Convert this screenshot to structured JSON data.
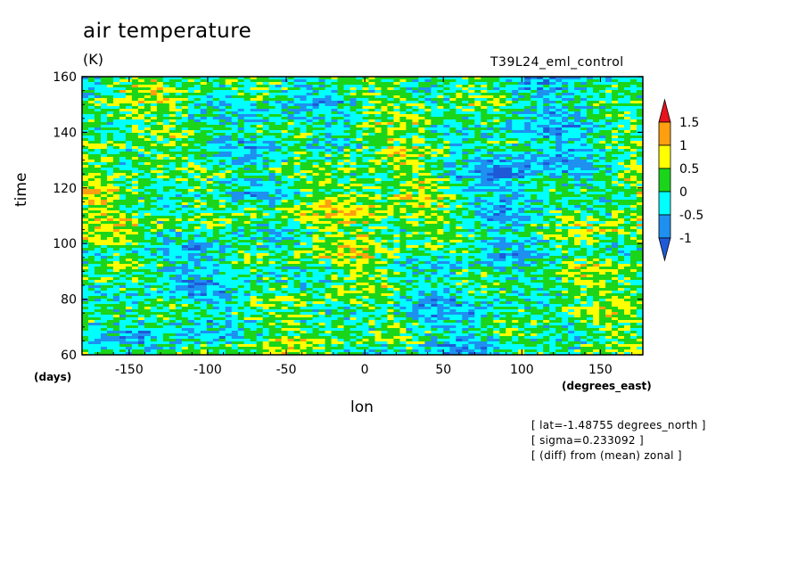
{
  "chart_data": {
    "type": "heatmap",
    "title": "air temperature",
    "units": "(K)",
    "run_label": "T39L24_eml_control",
    "xlabel": "lon",
    "ylabel": "time",
    "x_unit": "(degrees_east)",
    "y_unit": "(days)",
    "xlim": [
      -180,
      177
    ],
    "ylim": [
      60,
      160
    ],
    "x_ticks": [
      "-150",
      "-100",
      "-50",
      "0",
      "50",
      "100",
      "150"
    ],
    "x_tick_values": [
      -150,
      -100,
      -50,
      0,
      50,
      100,
      150
    ],
    "y_ticks": [
      "60",
      "80",
      "100",
      "120",
      "140",
      "160"
    ],
    "y_tick_values": [
      60,
      80,
      100,
      120,
      140,
      160
    ],
    "colorbar": {
      "labels": [
        "1.5",
        "1",
        "0.5",
        "0",
        "-0.5",
        "-1"
      ],
      "levels": [
        1.5,
        1,
        0.5,
        0,
        -0.5,
        -1
      ],
      "colors": [
        "#e8141c",
        "#ff9f10",
        "#ffff00",
        "#1bd51b",
        "#00ffff",
        "#1e90f0",
        "#1e5ad8"
      ]
    },
    "annotations": [
      "[ lat=-1.48755 degrees_north ]",
      "[ sigma=0.233092 ]",
      "[ (diff) from (mean) zonal ]"
    ]
  }
}
